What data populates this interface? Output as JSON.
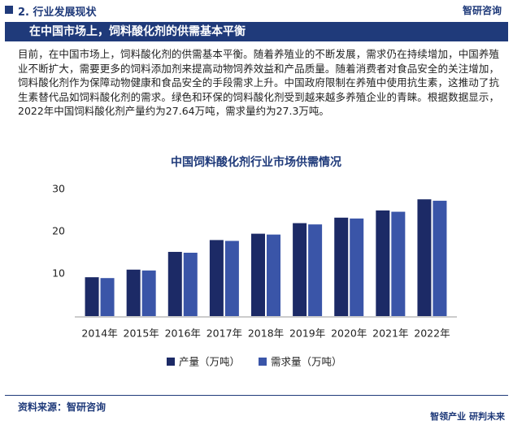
{
  "header": {
    "section": "2. 行业发展现状",
    "logo": "智研咨询"
  },
  "banner": "在中国市场上，饲料酸化剂的供需基本平衡",
  "paragraph": "目前，在中国市场上，饲料酸化剂的供需基本平衡。随着养殖业的不断发展，需求仍在持续增加，中国养殖业不断扩大，需要更多的饲料添加剂来提高动物饲养效益和产品质量。随着消费者对食品安全的关注增加，饲料酸化剂作为保障动物健康和食品安全的手段需求上升。中国政府限制在养殖中使用抗生素，这推动了抗生素替代品如饲料酸化剂的需求。绿色和环保的饲料酸化剂受到越来越多养殖企业的青睐。根据数据显示，2022年中国饲料酸化剂产量约为27.64万吨，需求量约为27.3万吨。",
  "chart_data": {
    "type": "bar",
    "title": "中国饲料酸化剂行业市场供需情况",
    "categories": [
      "2014年",
      "2015年",
      "2016年",
      "2017年",
      "2018年",
      "2019年",
      "2020年",
      "2021年",
      "2022年"
    ],
    "series": [
      {
        "name": "产量（万吨）",
        "color": "#1c2a66",
        "values": [
          9.2,
          11,
          15.2,
          18,
          19.5,
          22,
          23.3,
          25,
          27.64
        ]
      },
      {
        "name": "需求量（万吨）",
        "color": "#3a55a8",
        "values": [
          9,
          10.8,
          15,
          17.8,
          19.3,
          21.7,
          23.1,
          24.7,
          27.3
        ]
      }
    ],
    "ylim": [
      0,
      30
    ],
    "yticks": [
      10,
      20,
      30
    ],
    "grid": false
  },
  "footer": {
    "source": "资料来源：智研咨询",
    "slogan": "智领产业 研判未来"
  }
}
